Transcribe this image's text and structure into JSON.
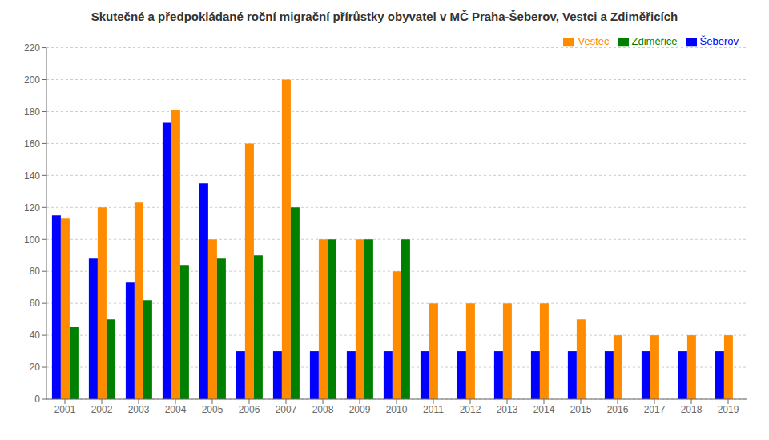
{
  "chart_data": {
    "type": "bar",
    "title": "Skutečné a předpokládané roční migrační přírůstky obyvatel v MČ Praha-Šeberov, Vestci a Zdiměřicích",
    "categories": [
      "2001",
      "2002",
      "2003",
      "2004",
      "2005",
      "2006",
      "2007",
      "2008",
      "2009",
      "2010",
      "2011",
      "2012",
      "2013",
      "2014",
      "2015",
      "2016",
      "2017",
      "2018",
      "2019"
    ],
    "series": [
      {
        "name": "Šeberov",
        "color": "#0000FF",
        "values": [
          115,
          88,
          73,
          173,
          135,
          30,
          30,
          30,
          30,
          30,
          30,
          30,
          30,
          30,
          30,
          30,
          30,
          30,
          30
        ]
      },
      {
        "name": "Vestec",
        "color": "#FF8C00",
        "values": [
          113,
          120,
          123,
          181,
          100,
          160,
          200,
          100,
          100,
          80,
          60,
          60,
          60,
          60,
          50,
          40,
          40,
          40,
          40
        ]
      },
      {
        "name": "Zdiměřice",
        "color": "#008000",
        "values": [
          45,
          50,
          62,
          84,
          88,
          90,
          120,
          100,
          100,
          100,
          0,
          0,
          0,
          0,
          0,
          0,
          0,
          0,
          0
        ]
      }
    ],
    "ylim": [
      0,
      220
    ],
    "yticks": [
      0,
      20,
      40,
      60,
      80,
      100,
      120,
      140,
      160,
      180,
      200,
      220
    ],
    "grid": true,
    "legend": "upper right"
  }
}
